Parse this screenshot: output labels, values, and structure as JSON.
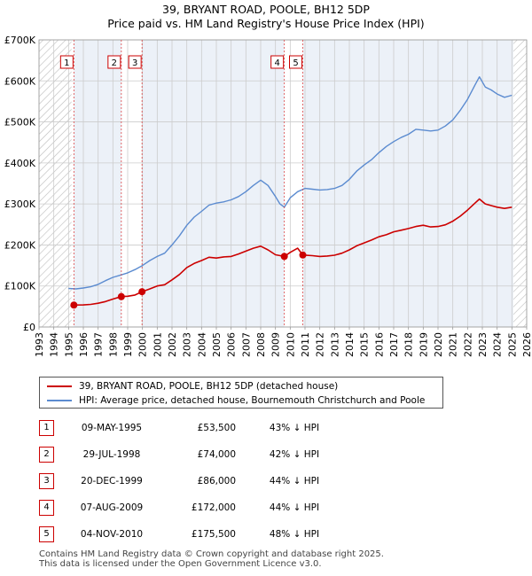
{
  "title_line1": "39, BRYANT ROAD, POOLE, BH12 5DP",
  "title_line2": "Price paid vs. HM Land Registry's House Price Index (HPI)",
  "chart_data": {
    "type": "line",
    "title": "39, BRYANT ROAD, POOLE, BH12 5DP — Price paid vs. HM Land Registry's House Price Index (HPI)",
    "xlim": [
      1993,
      2026
    ],
    "ylim": [
      0,
      700000
    ],
    "x_ticks": [
      1993,
      1994,
      1995,
      1996,
      1997,
      1998,
      1999,
      2000,
      2001,
      2002,
      2003,
      2004,
      2005,
      2006,
      2007,
      2008,
      2009,
      2010,
      2011,
      2012,
      2013,
      2014,
      2015,
      2016,
      2017,
      2018,
      2019,
      2020,
      2021,
      2022,
      2023,
      2024,
      2025,
      2026
    ],
    "y_ticks": [
      {
        "value": 0,
        "label": "£0"
      },
      {
        "value": 100000,
        "label": "£100K"
      },
      {
        "value": 200000,
        "label": "£200K"
      },
      {
        "value": 300000,
        "label": "£300K"
      },
      {
        "value": 400000,
        "label": "£400K"
      },
      {
        "value": 500000,
        "label": "£500K"
      },
      {
        "value": 600000,
        "label": "£600K"
      },
      {
        "value": 700000,
        "label": "£700K"
      }
    ],
    "hatched_ranges": [
      [
        1993,
        1995.2
      ],
      [
        2025.1,
        2026
      ]
    ],
    "shaded_ranges": [
      [
        1995.36,
        1998.57
      ],
      [
        1999.97,
        2009.6
      ],
      [
        2010.85,
        2025.1
      ]
    ],
    "series": [
      {
        "name": "39, BRYANT ROAD, POOLE, BH12 5DP (detached house)",
        "color": "#cc0000",
        "points": [
          [
            1995.36,
            53500
          ],
          [
            1996.0,
            53800
          ],
          [
            1996.5,
            55000
          ],
          [
            1997.0,
            58000
          ],
          [
            1997.5,
            62000
          ],
          [
            1998.0,
            68000
          ],
          [
            1998.57,
            74000
          ],
          [
            1999.0,
            75000
          ],
          [
            1999.5,
            78000
          ],
          [
            1999.97,
            86000
          ],
          [
            2000.5,
            93000
          ],
          [
            2001.0,
            100000
          ],
          [
            2001.5,
            103000
          ],
          [
            2002.0,
            115000
          ],
          [
            2002.5,
            128000
          ],
          [
            2003.0,
            145000
          ],
          [
            2003.5,
            155000
          ],
          [
            2004.0,
            162000
          ],
          [
            2004.5,
            170000
          ],
          [
            2005.0,
            168000
          ],
          [
            2005.5,
            171000
          ],
          [
            2006.0,
            172000
          ],
          [
            2006.5,
            178000
          ],
          [
            2007.0,
            185000
          ],
          [
            2007.5,
            192000
          ],
          [
            2008.0,
            197000
          ],
          [
            2008.5,
            188000
          ],
          [
            2009.0,
            176000
          ],
          [
            2009.6,
            172000
          ],
          [
            2010.0,
            182000
          ],
          [
            2010.5,
            192000
          ],
          [
            2010.85,
            175500
          ],
          [
            2011.5,
            174000
          ],
          [
            2012.0,
            172000
          ],
          [
            2012.5,
            173000
          ],
          [
            2013.0,
            175000
          ],
          [
            2013.5,
            180000
          ],
          [
            2014.0,
            188000
          ],
          [
            2014.5,
            198000
          ],
          [
            2015.0,
            205000
          ],
          [
            2015.5,
            212000
          ],
          [
            2016.0,
            220000
          ],
          [
            2016.5,
            225000
          ],
          [
            2017.0,
            232000
          ],
          [
            2017.5,
            236000
          ],
          [
            2018.0,
            240000
          ],
          [
            2018.5,
            245000
          ],
          [
            2019.0,
            248000
          ],
          [
            2019.5,
            244000
          ],
          [
            2020.0,
            245000
          ],
          [
            2020.5,
            249000
          ],
          [
            2021.0,
            258000
          ],
          [
            2021.5,
            270000
          ],
          [
            2022.0,
            285000
          ],
          [
            2022.5,
            302000
          ],
          [
            2022.8,
            312000
          ],
          [
            2023.2,
            300000
          ],
          [
            2023.6,
            296000
          ],
          [
            2024.0,
            292000
          ],
          [
            2024.5,
            289000
          ],
          [
            2025.0,
            292000
          ]
        ]
      },
      {
        "name": "HPI: Average price, detached house, Bournemouth Christchurch and Poole",
        "color": "#5b8bd0",
        "points": [
          [
            1995.0,
            94000
          ],
          [
            1995.5,
            93000
          ],
          [
            1996.0,
            95000
          ],
          [
            1996.5,
            98000
          ],
          [
            1997.0,
            104000
          ],
          [
            1997.5,
            113000
          ],
          [
            1998.0,
            121000
          ],
          [
            1998.57,
            127000
          ],
          [
            1999.0,
            132000
          ],
          [
            1999.5,
            140000
          ],
          [
            2000.0,
            150000
          ],
          [
            2000.5,
            162000
          ],
          [
            2001.0,
            172000
          ],
          [
            2001.5,
            180000
          ],
          [
            2002.0,
            200000
          ],
          [
            2002.5,
            222000
          ],
          [
            2003.0,
            248000
          ],
          [
            2003.5,
            268000
          ],
          [
            2004.0,
            282000
          ],
          [
            2004.5,
            297000
          ],
          [
            2005.0,
            302000
          ],
          [
            2005.5,
            305000
          ],
          [
            2006.0,
            310000
          ],
          [
            2006.5,
            318000
          ],
          [
            2007.0,
            330000
          ],
          [
            2007.5,
            345000
          ],
          [
            2008.0,
            358000
          ],
          [
            2008.5,
            345000
          ],
          [
            2009.0,
            318000
          ],
          [
            2009.3,
            300000
          ],
          [
            2009.6,
            292000
          ],
          [
            2010.0,
            315000
          ],
          [
            2010.5,
            330000
          ],
          [
            2011.0,
            338000
          ],
          [
            2011.5,
            336000
          ],
          [
            2012.0,
            334000
          ],
          [
            2012.5,
            335000
          ],
          [
            2013.0,
            338000
          ],
          [
            2013.5,
            345000
          ],
          [
            2014.0,
            360000
          ],
          [
            2014.5,
            380000
          ],
          [
            2015.0,
            395000
          ],
          [
            2015.5,
            408000
          ],
          [
            2016.0,
            425000
          ],
          [
            2016.5,
            440000
          ],
          [
            2017.0,
            452000
          ],
          [
            2017.5,
            462000
          ],
          [
            2018.0,
            470000
          ],
          [
            2018.5,
            482000
          ],
          [
            2019.0,
            480000
          ],
          [
            2019.5,
            478000
          ],
          [
            2020.0,
            480000
          ],
          [
            2020.5,
            490000
          ],
          [
            2021.0,
            505000
          ],
          [
            2021.5,
            528000
          ],
          [
            2022.0,
            555000
          ],
          [
            2022.5,
            590000
          ],
          [
            2022.8,
            610000
          ],
          [
            2023.2,
            585000
          ],
          [
            2023.6,
            578000
          ],
          [
            2024.0,
            568000
          ],
          [
            2024.5,
            560000
          ],
          [
            2025.0,
            565000
          ]
        ]
      }
    ],
    "sales": [
      {
        "n": "1",
        "x": 1995.36,
        "price": 53500
      },
      {
        "n": "2",
        "x": 1998.57,
        "price": 74000
      },
      {
        "n": "3",
        "x": 1999.97,
        "price": 86000
      },
      {
        "n": "4",
        "x": 2009.6,
        "price": 172000
      },
      {
        "n": "5",
        "x": 2010.85,
        "price": 175500
      }
    ]
  },
  "legend": {
    "series1": "39, BRYANT ROAD, POOLE, BH12 5DP (detached house)",
    "series2": "HPI: Average price, detached house, Bournemouth Christchurch and Poole",
    "series1_color": "#cc0000",
    "series2_color": "#5b8bd0"
  },
  "sales_table": [
    {
      "n": "1",
      "date": "09-MAY-1995",
      "price": "£53,500",
      "hpi": "43% ↓ HPI"
    },
    {
      "n": "2",
      "date": "29-JUL-1998",
      "price": "£74,000",
      "hpi": "42% ↓ HPI"
    },
    {
      "n": "3",
      "date": "20-DEC-1999",
      "price": "£86,000",
      "hpi": "44% ↓ HPI"
    },
    {
      "n": "4",
      "date": "07-AUG-2009",
      "price": "£172,000",
      "hpi": "44% ↓ HPI"
    },
    {
      "n": "5",
      "date": "04-NOV-2010",
      "price": "£175,500",
      "hpi": "48% ↓ HPI"
    }
  ],
  "footer_line1": "Contains HM Land Registry data © Crown copyright and database right 2025.",
  "footer_line2": "This data is licensed under the Open Government Licence v3.0."
}
